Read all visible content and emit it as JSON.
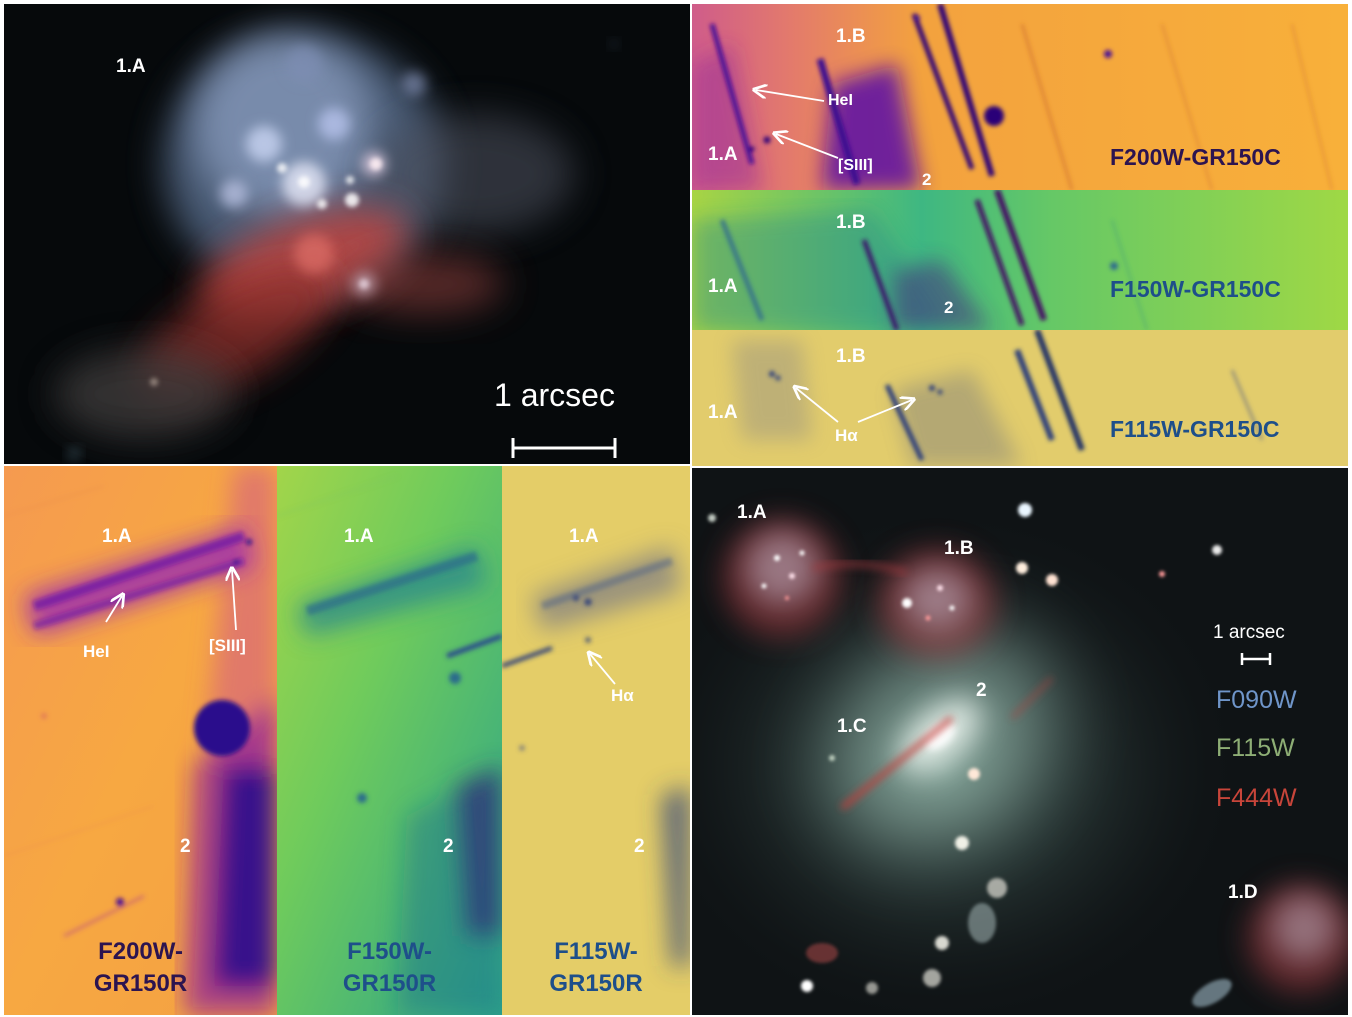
{
  "colors": {
    "magma_bg": "#f2a23c",
    "magma_deep": "#3a0a8c",
    "viridis_bg": "#8fd14f",
    "viridis_deep": "#2c5a8c",
    "cividis_bg": "#e2cc6c",
    "cividis_deep": "#2c3c7a",
    "filter_f200_text": "#2c1450",
    "filter_f150_text": "#1e4f8a",
    "filter_f115_text": "#1e4f8a",
    "legend_f090": "#6f95c9",
    "legend_f115": "#8eae75",
    "legend_f444": "#c8453a"
  },
  "top_left": {
    "label_1a": "1.A",
    "scale_text": "1 arcsec"
  },
  "top_right": {
    "f200": {
      "label_1b": "1.B",
      "label_1a": "1.A",
      "label_2": "2",
      "annot_hei": "HeI",
      "annot_siii": "[SIII]",
      "filter": "F200W-GR150C"
    },
    "f150": {
      "label_1b": "1.B",
      "label_1a": "1.A",
      "label_2": "2",
      "filter": "F150W-GR150C"
    },
    "f115": {
      "label_1b": "1.B",
      "label_1a": "1.A",
      "annot_ha": "Hα",
      "filter": "F115W-GR150C"
    }
  },
  "bottom_left": {
    "f200": {
      "label_1a": "1.A",
      "annot_hei": "HeI",
      "annot_siii": "[SIII]",
      "label_2": "2",
      "filter_line1": "F200W-",
      "filter_line2": "GR150R"
    },
    "f150": {
      "label_1a": "1.A",
      "label_2": "2",
      "filter_line1": "F150W-",
      "filter_line2": "GR150R"
    },
    "f115": {
      "label_1a": "1.A",
      "annot_ha": "Hα",
      "label_2": "2",
      "filter_line1": "F115W-",
      "filter_line2": "GR150R"
    }
  },
  "bottom_right": {
    "label_1a": "1.A",
    "label_1b": "1.B",
    "label_1c": "1.C",
    "label_1d": "1.D",
    "label_2": "2",
    "scale_text": "1 arcsec",
    "legend": [
      "F090W",
      "F115W",
      "F444W"
    ]
  }
}
